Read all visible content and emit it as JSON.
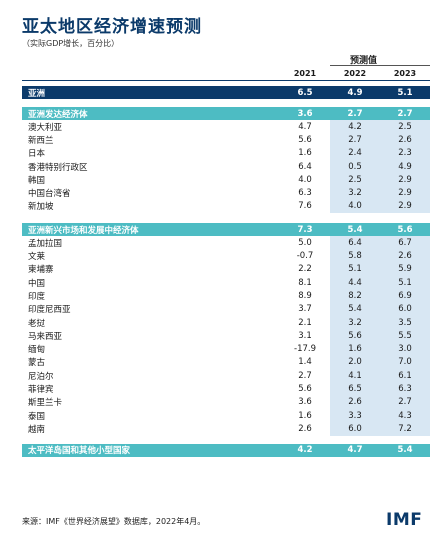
{
  "title": "亚太地区经济增速预测",
  "subtitle": "（实际GDP增长，百分比）",
  "projection_label": "预测值",
  "years": [
    "2021",
    "2022",
    "2023"
  ],
  "asia": {
    "name": "亚洲",
    "v": [
      "6.5",
      "4.9",
      "5.1"
    ]
  },
  "advanced": {
    "name": "亚洲发达经济体",
    "v": [
      "3.6",
      "2.7",
      "2.7"
    ],
    "rows": [
      {
        "name": "澳大利亚",
        "v": [
          "4.7",
          "4.2",
          "2.5"
        ]
      },
      {
        "name": "新西兰",
        "v": [
          "5.6",
          "2.7",
          "2.6"
        ]
      },
      {
        "name": "日本",
        "v": [
          "1.6",
          "2.4",
          "2.3"
        ]
      },
      {
        "name": "香港特别行政区",
        "v": [
          "6.4",
          "0.5",
          "4.9"
        ]
      },
      {
        "name": "韩国",
        "v": [
          "4.0",
          "2.5",
          "2.9"
        ]
      },
      {
        "name": "中国台湾省",
        "v": [
          "6.3",
          "3.2",
          "2.9"
        ]
      },
      {
        "name": "新加坡",
        "v": [
          "7.6",
          "4.0",
          "2.9"
        ]
      }
    ]
  },
  "emerging": {
    "name": "亚洲新兴市场和发展中经济体",
    "v": [
      "7.3",
      "5.4",
      "5.6"
    ],
    "rows": [
      {
        "name": "孟加拉国",
        "v": [
          "5.0",
          "6.4",
          "6.7"
        ]
      },
      {
        "name": "文莱",
        "v": [
          "-0.7",
          "5.8",
          "2.6"
        ]
      },
      {
        "name": "柬埔寨",
        "v": [
          "2.2",
          "5.1",
          "5.9"
        ]
      },
      {
        "name": "中国",
        "v": [
          "8.1",
          "4.4",
          "5.1"
        ]
      },
      {
        "name": "印度",
        "v": [
          "8.9",
          "8.2",
          "6.9"
        ]
      },
      {
        "name": "印度尼西亚",
        "v": [
          "3.7",
          "5.4",
          "6.0"
        ]
      },
      {
        "name": "老挝",
        "v": [
          "2.1",
          "3.2",
          "3.5"
        ]
      },
      {
        "name": "马来西亚",
        "v": [
          "3.1",
          "5.6",
          "5.5"
        ]
      },
      {
        "name": "缅甸",
        "v": [
          "-17.9",
          "1.6",
          "3.0"
        ]
      },
      {
        "name": "蒙古",
        "v": [
          "1.4",
          "2.0",
          "7.0"
        ]
      },
      {
        "name": "尼泊尔",
        "v": [
          "2.7",
          "4.1",
          "6.1"
        ]
      },
      {
        "name": "菲律宾",
        "v": [
          "5.6",
          "6.5",
          "6.3"
        ]
      },
      {
        "name": "斯里兰卡",
        "v": [
          "3.6",
          "2.6",
          "2.7"
        ]
      },
      {
        "name": "泰国",
        "v": [
          "1.6",
          "3.3",
          "4.3"
        ]
      },
      {
        "name": "越南",
        "v": [
          "2.6",
          "6.0",
          "7.2"
        ]
      }
    ]
  },
  "pacific": {
    "name": "太平洋岛国和其他小型国家",
    "v": [
      "4.2",
      "4.7",
      "5.4"
    ]
  },
  "source": "来源：IMF《世界经济展望》数据库，2022年4月。",
  "logo": "IMF",
  "colors": {
    "navy": "#0b3a6a",
    "teal": "#4dbcc3",
    "highlight": "#d8e7f3"
  }
}
